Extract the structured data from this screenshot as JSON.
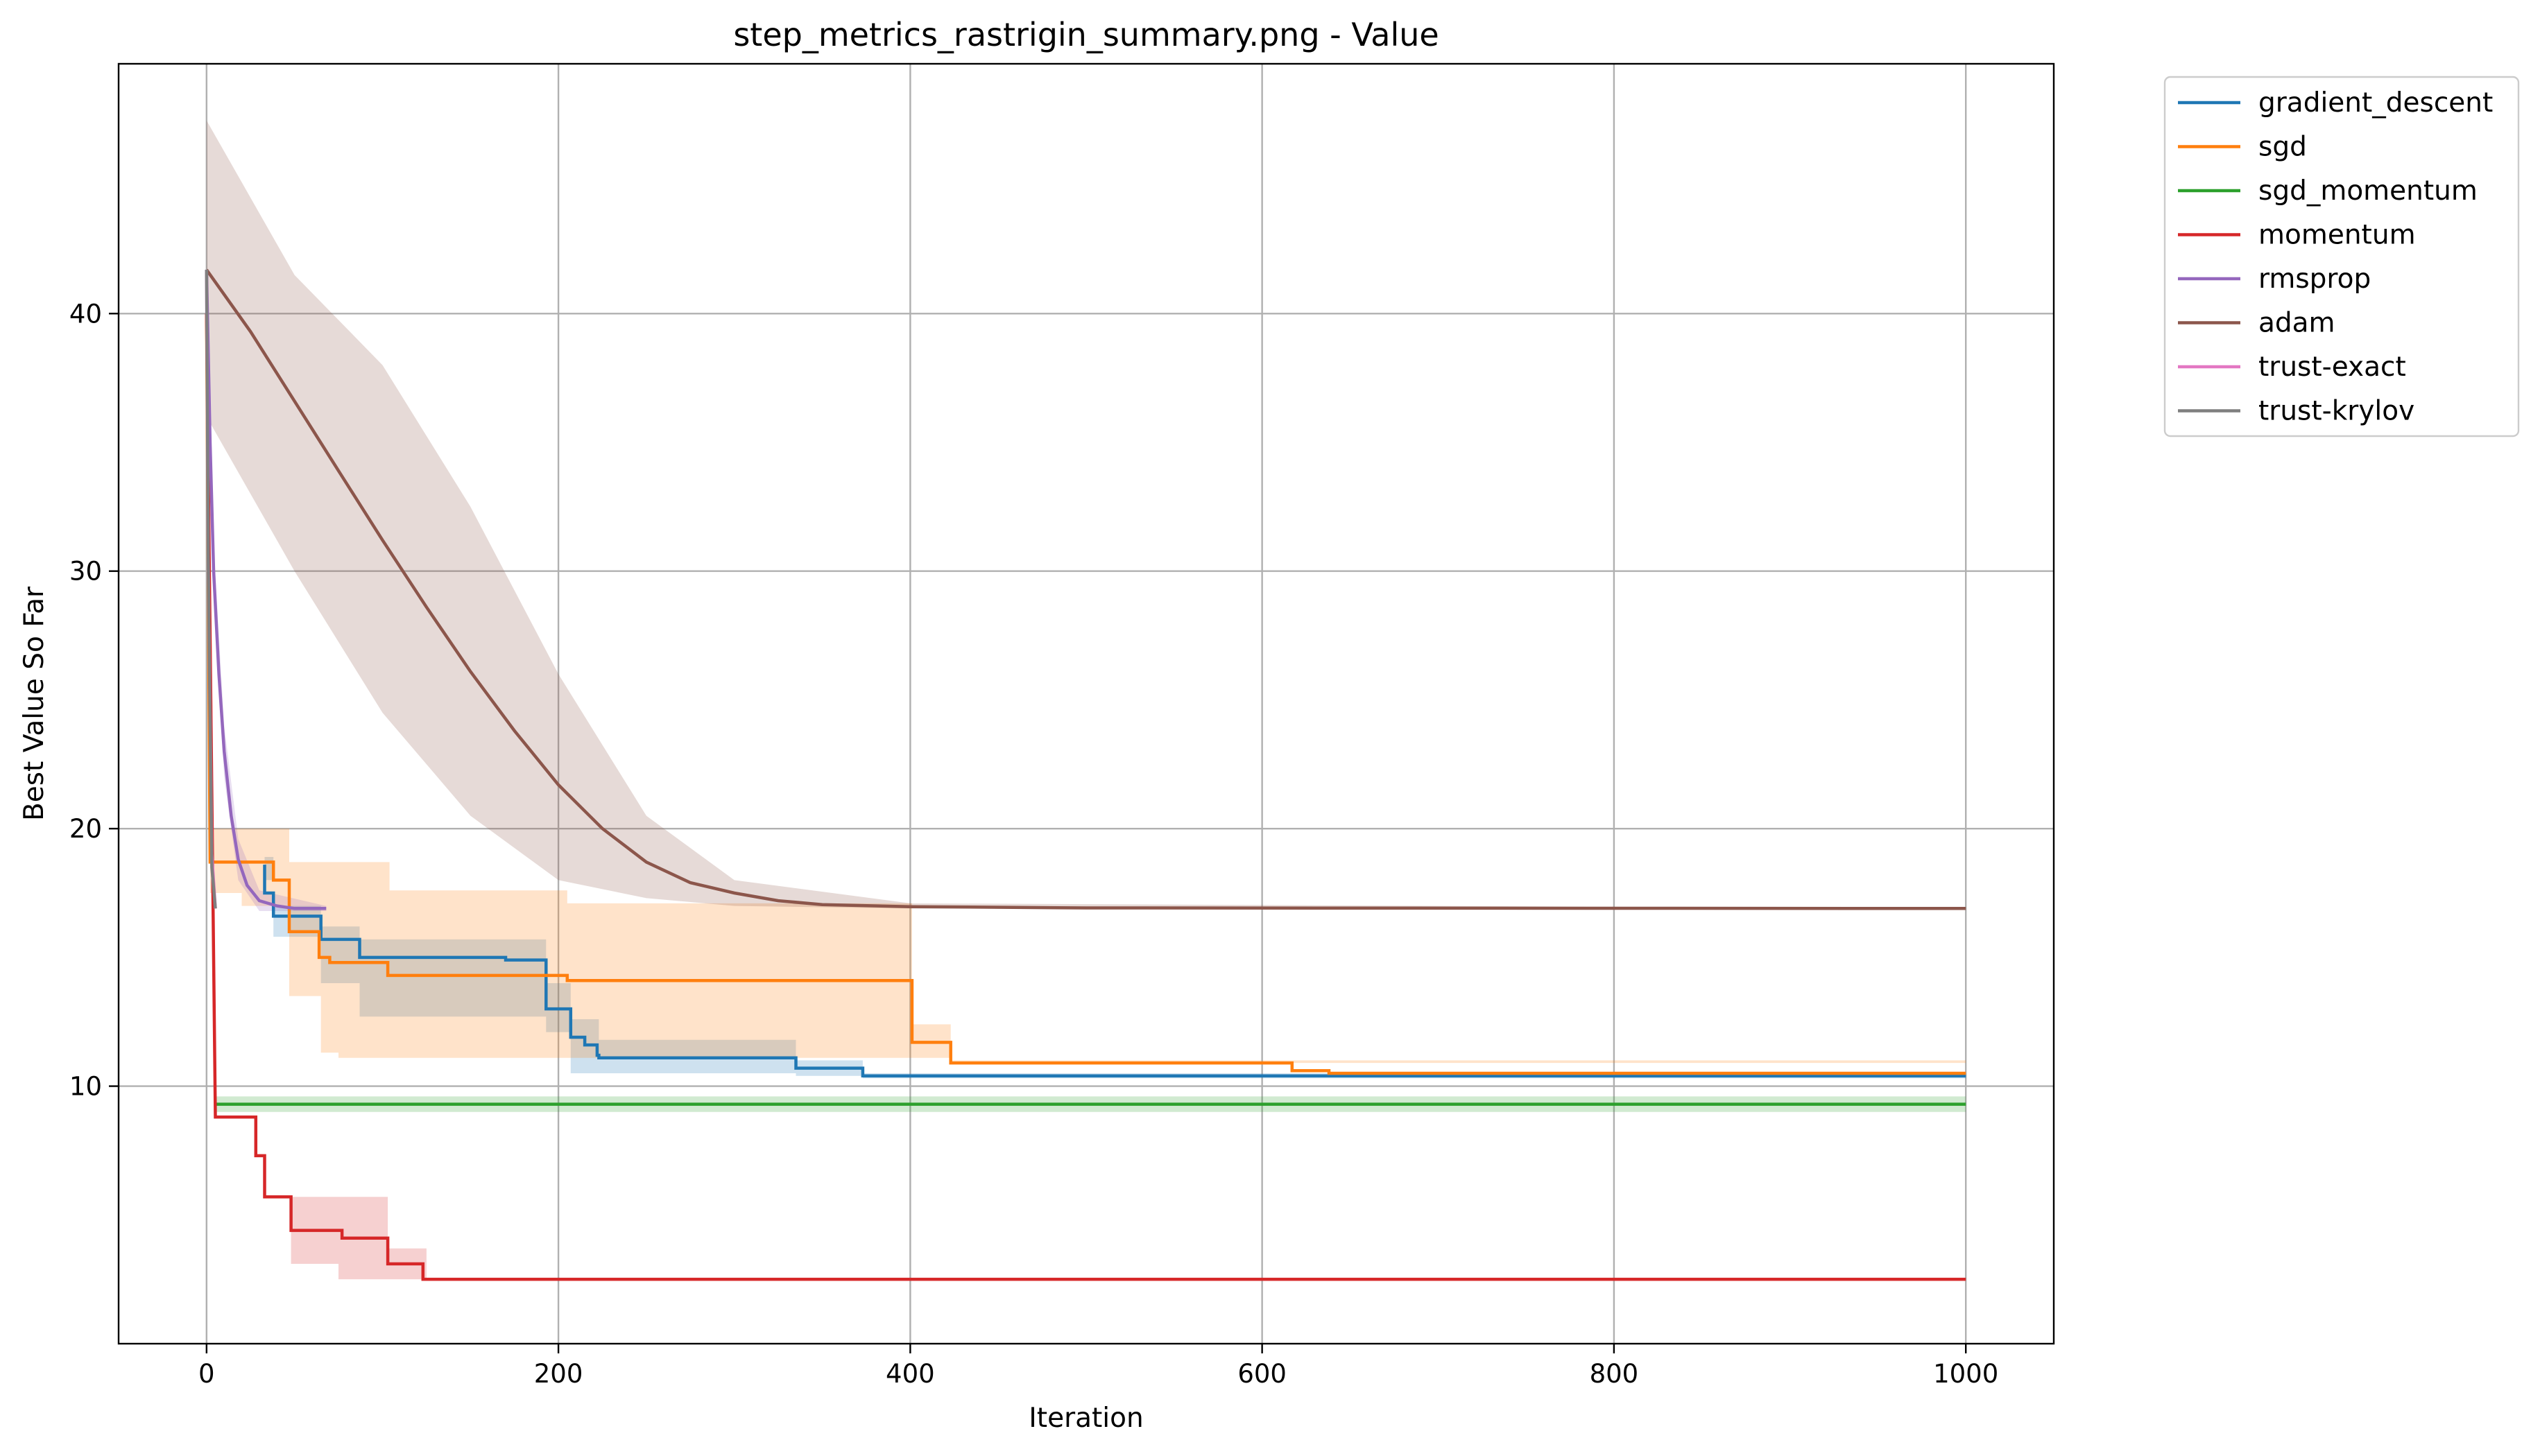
{
  "chart_data": {
    "type": "line",
    "title": "step_metrics_rastrigin_summary.png - Value",
    "xlabel": "Iteration",
    "ylabel": "Best Value So Far",
    "xlim": [
      -50,
      1050
    ],
    "ylim": [
      0,
      49.7
    ],
    "xticks": [
      0,
      200,
      400,
      600,
      800,
      1000
    ],
    "yticks": [
      10,
      20,
      30,
      40
    ],
    "grid": true,
    "legend": {
      "placement": "outside-top-right"
    },
    "series": [
      {
        "name": "gradient_descent",
        "color": "#1f77b4",
        "step": true,
        "points": [
          [
            33,
            18.6
          ],
          [
            33,
            17.5
          ],
          [
            38,
            17.5
          ],
          [
            38,
            16.6
          ],
          [
            65,
            16.6
          ],
          [
            65,
            15.7
          ],
          [
            87,
            15.7
          ],
          [
            87,
            15.0
          ],
          [
            170,
            15.0
          ],
          [
            170,
            14.9
          ],
          [
            193,
            14.9
          ],
          [
            193,
            13.0
          ],
          [
            207,
            13.0
          ],
          [
            207,
            11.9
          ],
          [
            215,
            11.9
          ],
          [
            215,
            11.6
          ],
          [
            222,
            11.6
          ],
          [
            222,
            11.2
          ],
          [
            223,
            11.2
          ],
          [
            223,
            11.1
          ],
          [
            335,
            11.1
          ],
          [
            335,
            10.7
          ],
          [
            373,
            10.7
          ],
          [
            373,
            10.4
          ],
          [
            1000,
            10.4
          ]
        ],
        "band_points": [
          [
            33,
            18.0,
            18.9
          ],
          [
            38,
            15.8,
            17.0
          ],
          [
            65,
            14.0,
            16.2
          ],
          [
            87,
            12.7,
            15.7
          ],
          [
            193,
            12.1,
            14.0
          ],
          [
            207,
            10.5,
            12.6
          ],
          [
            223,
            10.5,
            11.8
          ],
          [
            335,
            10.4,
            11.0
          ],
          [
            373,
            10.3,
            10.5
          ],
          [
            1000,
            10.3,
            10.5
          ]
        ]
      },
      {
        "name": "sgd",
        "color": "#ff7f0e",
        "step": true,
        "points": [
          [
            0,
            40
          ],
          [
            2,
            18.7
          ],
          [
            38,
            18.7
          ],
          [
            38,
            18.0
          ],
          [
            47,
            18.0
          ],
          [
            47,
            16.0
          ],
          [
            64,
            16.0
          ],
          [
            64,
            15.0
          ],
          [
            70,
            15.0
          ],
          [
            70,
            14.8
          ],
          [
            103,
            14.8
          ],
          [
            103,
            14.3
          ],
          [
            205,
            14.3
          ],
          [
            205,
            14.1
          ],
          [
            401,
            14.1
          ],
          [
            401,
            11.7
          ],
          [
            423,
            11.7
          ],
          [
            423,
            10.9
          ],
          [
            617,
            10.9
          ],
          [
            617,
            10.6
          ],
          [
            638,
            10.6
          ],
          [
            638,
            10.5
          ],
          [
            1000,
            10.5
          ]
        ],
        "band_points": [
          [
            2,
            17.5,
            20.0
          ],
          [
            20,
            17.0,
            20.0
          ],
          [
            47,
            13.5,
            18.7
          ],
          [
            65,
            11.3,
            18.7
          ],
          [
            75,
            11.1,
            18.7
          ],
          [
            104,
            11.1,
            17.6
          ],
          [
            205,
            11.1,
            17.1
          ],
          [
            401,
            11.1,
            12.4
          ],
          [
            423,
            10.9,
            11.0
          ],
          [
            1000,
            10.3,
            10.6
          ]
        ]
      },
      {
        "name": "sgd_momentum",
        "color": "#2ca02c",
        "step": false,
        "points": [
          [
            5,
            9.3
          ],
          [
            1000,
            9.3
          ]
        ],
        "band_points": [
          [
            5,
            9.0,
            9.6
          ],
          [
            1000,
            9.0,
            9.6
          ]
        ]
      },
      {
        "name": "momentum",
        "color": "#d62728",
        "step": true,
        "points": [
          [
            0,
            40
          ],
          [
            5,
            8.8
          ],
          [
            28,
            8.8
          ],
          [
            28,
            7.3
          ],
          [
            33,
            7.3
          ],
          [
            33,
            5.7
          ],
          [
            48,
            5.7
          ],
          [
            48,
            4.4
          ],
          [
            77,
            4.4
          ],
          [
            77,
            4.1
          ],
          [
            103,
            4.1
          ],
          [
            103,
            3.1
          ],
          [
            123,
            3.1
          ],
          [
            123,
            2.5
          ],
          [
            1000,
            2.5
          ]
        ],
        "band_points": [
          [
            48,
            3.1,
            5.7
          ],
          [
            75,
            2.5,
            5.7
          ],
          [
            103,
            2.5,
            3.7
          ],
          [
            125,
            2.5,
            2.5
          ],
          [
            1000,
            2.5,
            2.5
          ]
        ]
      },
      {
        "name": "rmsprop",
        "color": "#9467bd",
        "step": false,
        "points": [
          [
            0,
            41.7
          ],
          [
            2,
            35.0
          ],
          [
            4,
            30.0
          ],
          [
            7,
            26.0
          ],
          [
            10,
            23.0
          ],
          [
            14,
            20.5
          ],
          [
            18,
            18.8
          ],
          [
            23,
            17.8
          ],
          [
            30,
            17.2
          ],
          [
            40,
            17.0
          ],
          [
            50,
            16.9
          ],
          [
            68,
            16.9
          ]
        ],
        "band_points": [
          [
            0,
            41.5,
            41.9
          ],
          [
            4,
            29.0,
            31.0
          ],
          [
            10,
            22.0,
            24.0
          ],
          [
            18,
            18.0,
            19.6
          ],
          [
            30,
            16.8,
            17.6
          ],
          [
            68,
            16.8,
            17.0
          ]
        ]
      },
      {
        "name": "adam",
        "color": "#8c564b",
        "step": false,
        "points": [
          [
            0,
            41.7
          ],
          [
            25,
            39.3
          ],
          [
            50,
            36.6
          ],
          [
            75,
            33.9
          ],
          [
            100,
            31.2
          ],
          [
            125,
            28.6
          ],
          [
            150,
            26.1
          ],
          [
            175,
            23.8
          ],
          [
            200,
            21.7
          ],
          [
            225,
            20.0
          ],
          [
            250,
            18.7
          ],
          [
            275,
            17.9
          ],
          [
            300,
            17.5
          ],
          [
            325,
            17.2
          ],
          [
            350,
            17.05
          ],
          [
            400,
            16.97
          ],
          [
            500,
            16.92
          ],
          [
            1000,
            16.9
          ]
        ],
        "band_points": [
          [
            0,
            36.0,
            47.5
          ],
          [
            50,
            30.0,
            41.5
          ],
          [
            100,
            24.5,
            38.0
          ],
          [
            150,
            20.5,
            32.5
          ],
          [
            200,
            18.0,
            26.0
          ],
          [
            250,
            17.3,
            20.5
          ],
          [
            300,
            17.0,
            18.0
          ],
          [
            400,
            16.9,
            17.1
          ],
          [
            1000,
            16.9,
            16.9
          ]
        ]
      },
      {
        "name": "trust-exact",
        "color": "#e377c2",
        "step": false,
        "points": [
          [
            0,
            41.7
          ],
          [
            1,
            30.0
          ],
          [
            3,
            19.0
          ],
          [
            5,
            16.9
          ]
        ],
        "band_points": []
      },
      {
        "name": "trust-krylov",
        "color": "#7f7f7f",
        "step": false,
        "points": [
          [
            0,
            41.7
          ],
          [
            1,
            30.0
          ],
          [
            3,
            18.5
          ],
          [
            5,
            16.9
          ]
        ],
        "band_points": [
          [
            0,
            41.5,
            41.9
          ],
          [
            3,
            17.2,
            20.0
          ],
          [
            5,
            16.9,
            17.0
          ]
        ]
      }
    ]
  }
}
